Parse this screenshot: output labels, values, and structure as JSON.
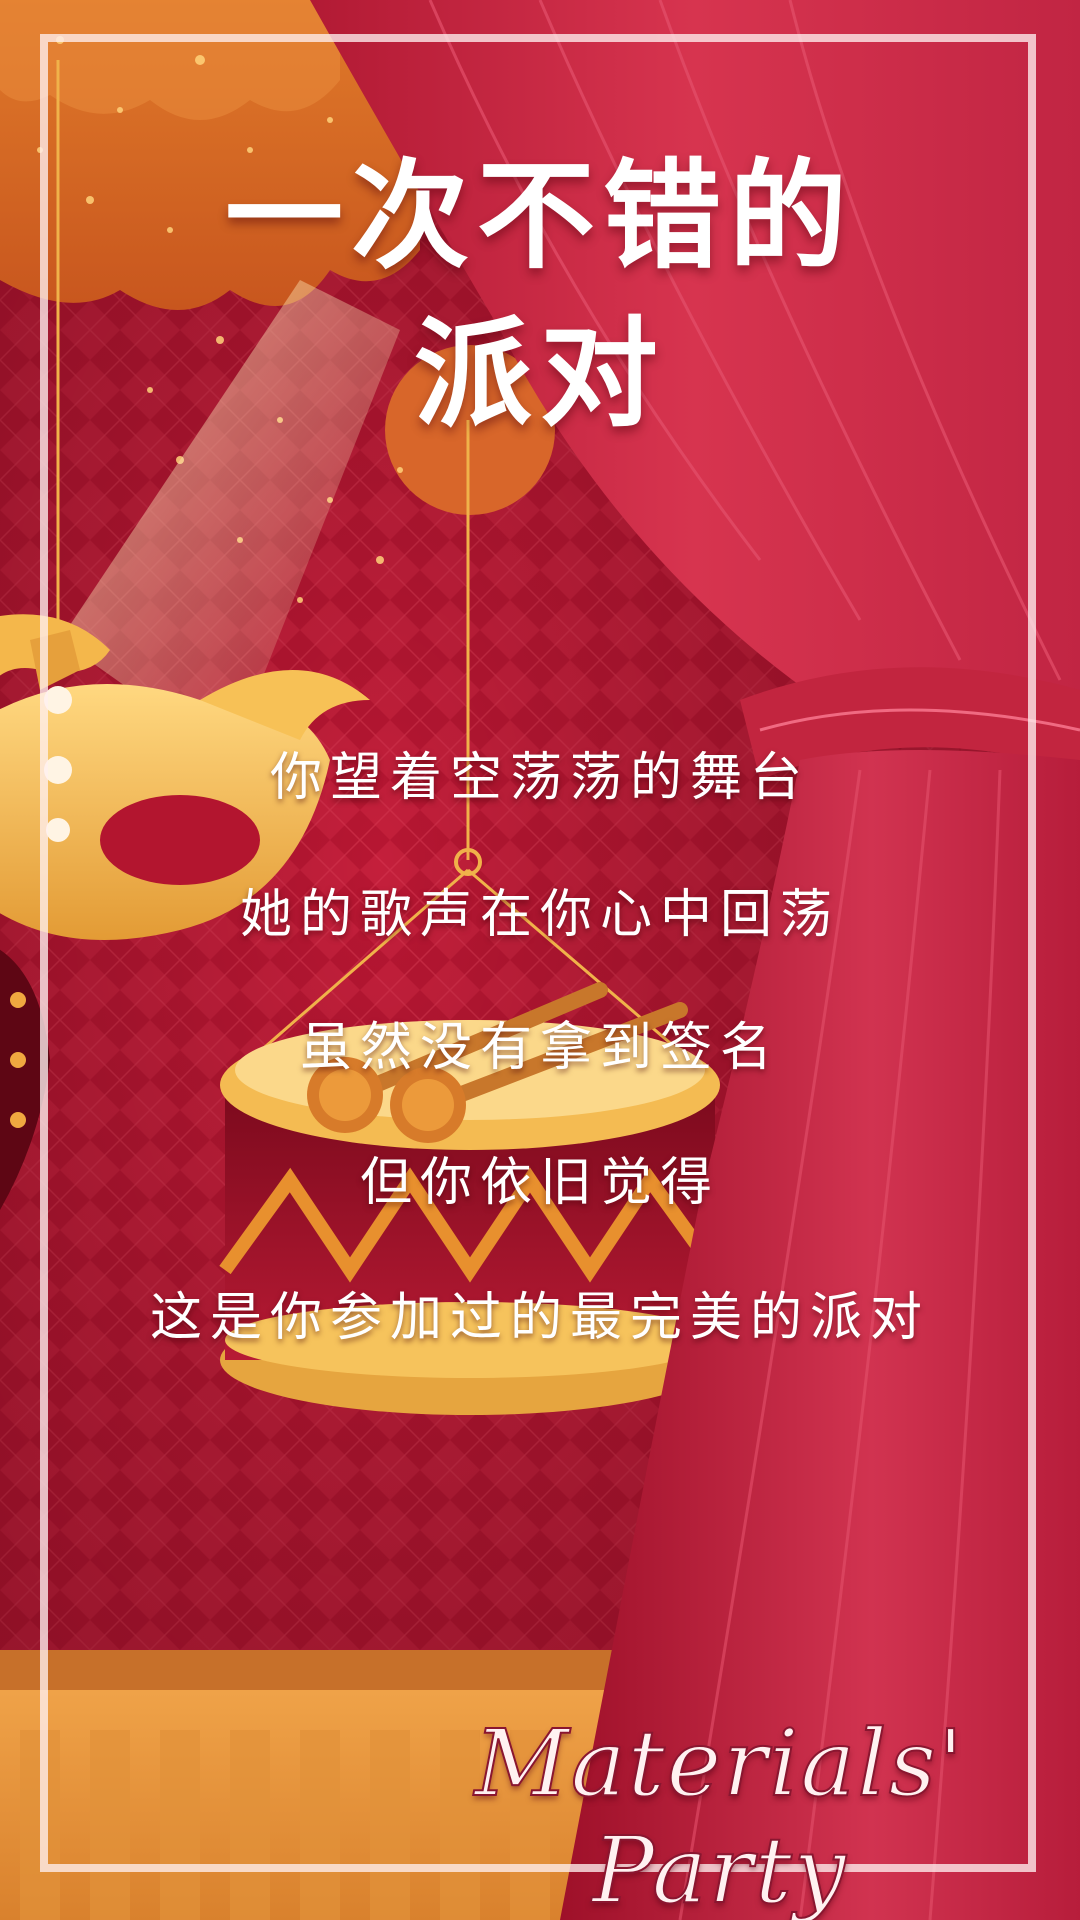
{
  "title": {
    "line1": "一次不错的",
    "line2": "派对"
  },
  "lyrics": [
    "你望着空荡荡的舞台",
    "她的歌声在你心中回荡",
    "虽然没有拿到签名",
    "但你依旧觉得",
    "这是你参加过的最完美的派对"
  ],
  "signature": "Materials' Party",
  "colors": {
    "background": "#b0182f",
    "curtain": "#d2304a",
    "gold": "#f2b347",
    "text": "#ffffff"
  }
}
